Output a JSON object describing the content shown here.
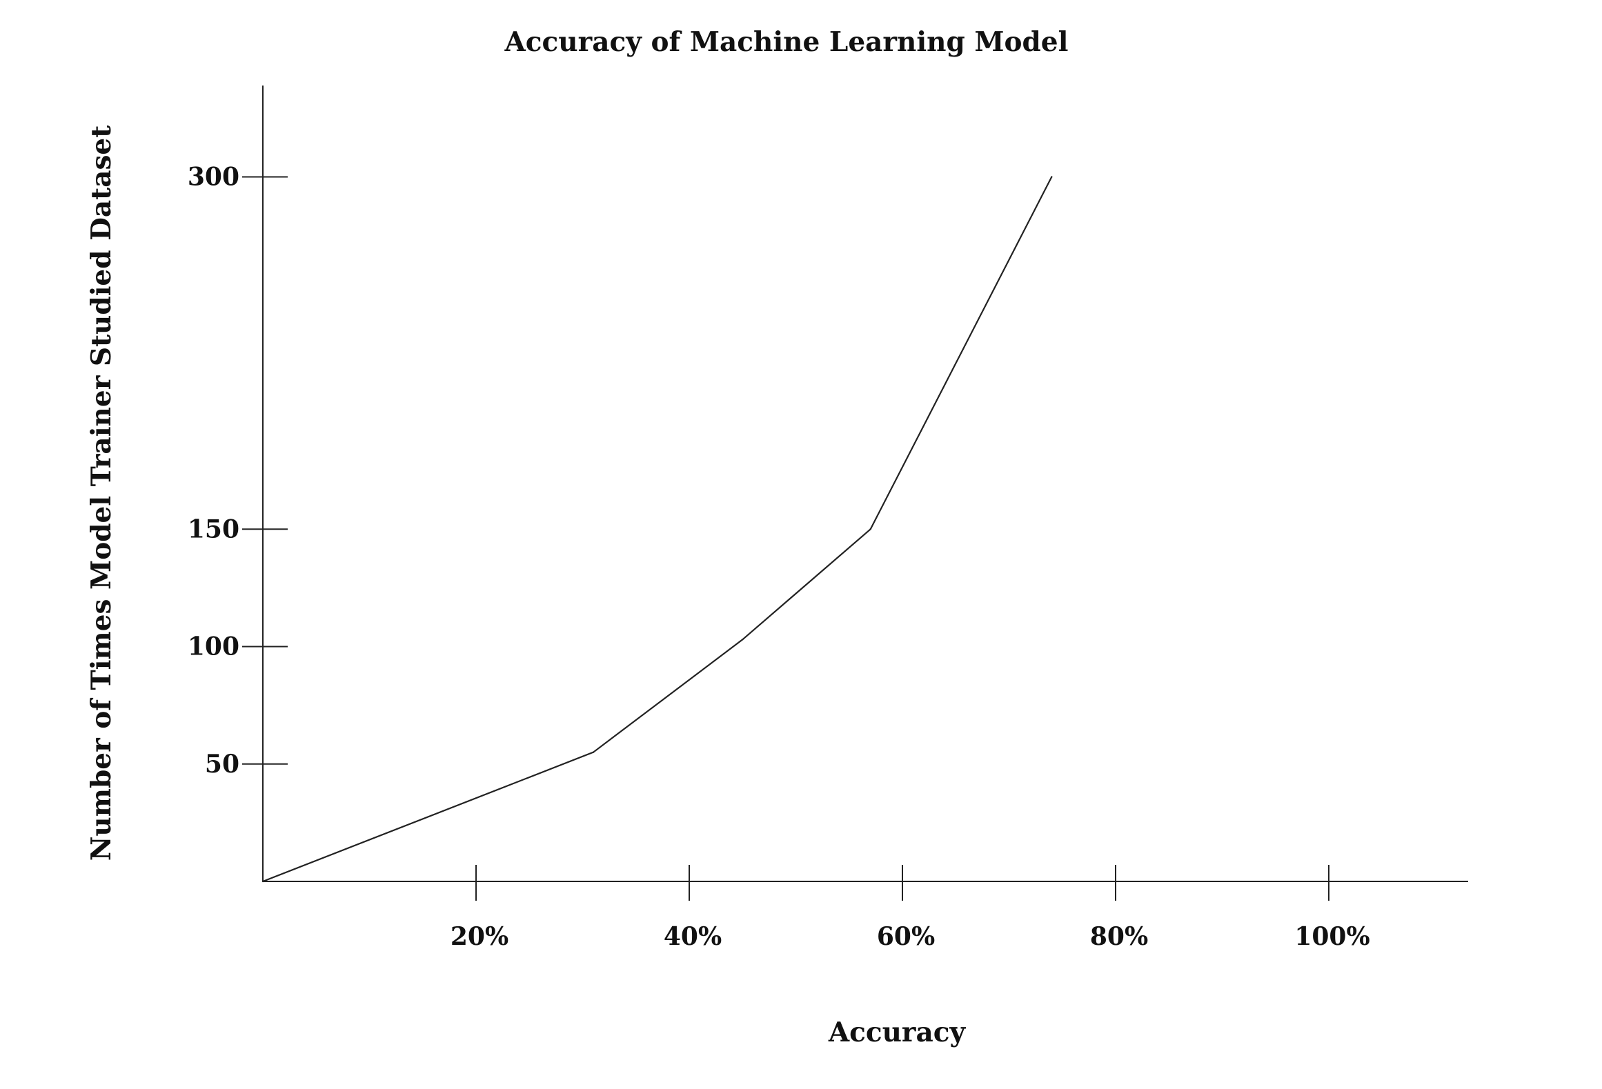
{
  "chart_data": {
    "type": "line",
    "title": "Accuracy of  Machine Learning Model",
    "xlabel": "Accuracy",
    "ylabel": "Number of  Times Model Trainer Studied Dataset",
    "x_ticks": [
      {
        "value": 20,
        "label": "20%"
      },
      {
        "value": 40,
        "label": "40%"
      },
      {
        "value": 60,
        "label": "60%"
      },
      {
        "value": 80,
        "label": "80%"
      },
      {
        "value": 100,
        "label": "100%"
      }
    ],
    "y_ticks": [
      {
        "value": 50,
        "label": "50"
      },
      {
        "value": 100,
        "label": "100"
      },
      {
        "value": 150,
        "label": "150"
      },
      {
        "value": 300,
        "label": "300"
      }
    ],
    "xlim": [
      0,
      114
    ],
    "ylim": [
      0,
      350
    ],
    "grid": false,
    "legend": "none",
    "series": [
      {
        "x": [
          0,
          31,
          45,
          57,
          74
        ],
        "y": [
          0,
          55,
          103,
          150,
          300
        ]
      }
    ]
  }
}
